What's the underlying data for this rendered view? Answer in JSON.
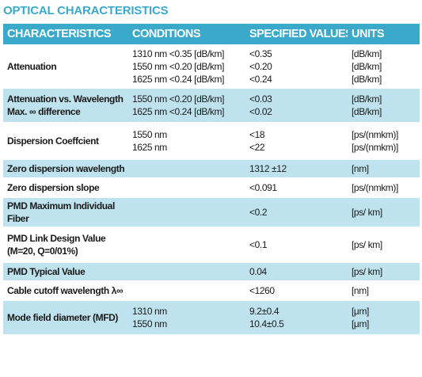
{
  "title": "OPTICAL CHARACTERISTICS",
  "headers": {
    "characteristics": "CHARACTERISTICS",
    "conditions": "CONDITIONS",
    "specified": "SPECIFIED VALUES",
    "units": "UNITS"
  },
  "rows": [
    {
      "c1": [
        "Attenuation"
      ],
      "c2": [
        "1310 nm <0.35 [dB/km]",
        "1550 nm <0.20 [dB/km]",
        "1625 nm <0.24 [dB/km]"
      ],
      "c3": [
        "<0.35",
        "<0.20",
        "<0.24"
      ],
      "c4": [
        "[dB/km]",
        "[dB/km]",
        "[dB/km]"
      ]
    },
    {
      "c1": [
        "Attenuation vs. Wavelength",
        "Max. ∞ difference"
      ],
      "c2": [
        "1550 nm <0.20 [dB/km]",
        "1625 nm <0.24 [dB/km]"
      ],
      "c3": [
        "<0.03",
        "<0.02"
      ],
      "c4": [
        "[dB/km]",
        "[dB/km]"
      ]
    },
    {
      "c1": [
        "Dispersion Coeffcient"
      ],
      "c2": [
        "1550 nm",
        "1625 nm"
      ],
      "c3": [
        "<18",
        "<22"
      ],
      "c4": [
        "[ps/(nmkm)]",
        "[ps/(nmkm)]"
      ]
    },
    {
      "c1": [
        "Zero dispersion wavelength"
      ],
      "c2": [],
      "c3": [
        "1312 ±12"
      ],
      "c4": [
        "[nm]"
      ]
    },
    {
      "c1": [
        "Zero dispersion slope"
      ],
      "c2": [],
      "c3": [
        "<0.091"
      ],
      "c4": [
        "[ps/(nmkm)]"
      ]
    },
    {
      "c1": [
        "PMD Maximum Individual",
        "Fiber"
      ],
      "c2": [],
      "c3": [
        "<0.2"
      ],
      "c4": [
        "[ps/ km]"
      ]
    },
    {
      "c1": [
        "PMD Link Design Value",
        "(M=20, Q=0/01%)"
      ],
      "c2": [],
      "c3": [
        "<0.1"
      ],
      "c4": [
        "[ps/ km]"
      ]
    },
    {
      "c1": [
        "PMD Typical Value"
      ],
      "c2": [],
      "c3": [
        "0.04"
      ],
      "c4": [
        "[ps/ km]"
      ]
    },
    {
      "c1": [
        "Cable cutoff wavelength λ∞"
      ],
      "c2": [],
      "c3": [
        "<1260"
      ],
      "c4": [
        "[nm]"
      ]
    },
    {
      "c1": [
        "Mode field diameter (MFD)"
      ],
      "c2": [
        "1310 nm",
        "1550 nm"
      ],
      "c3": [
        "9.2±0.4",
        "10.4±0.5"
      ],
      "c4": [
        "[μm]",
        "[μm]"
      ]
    }
  ]
}
